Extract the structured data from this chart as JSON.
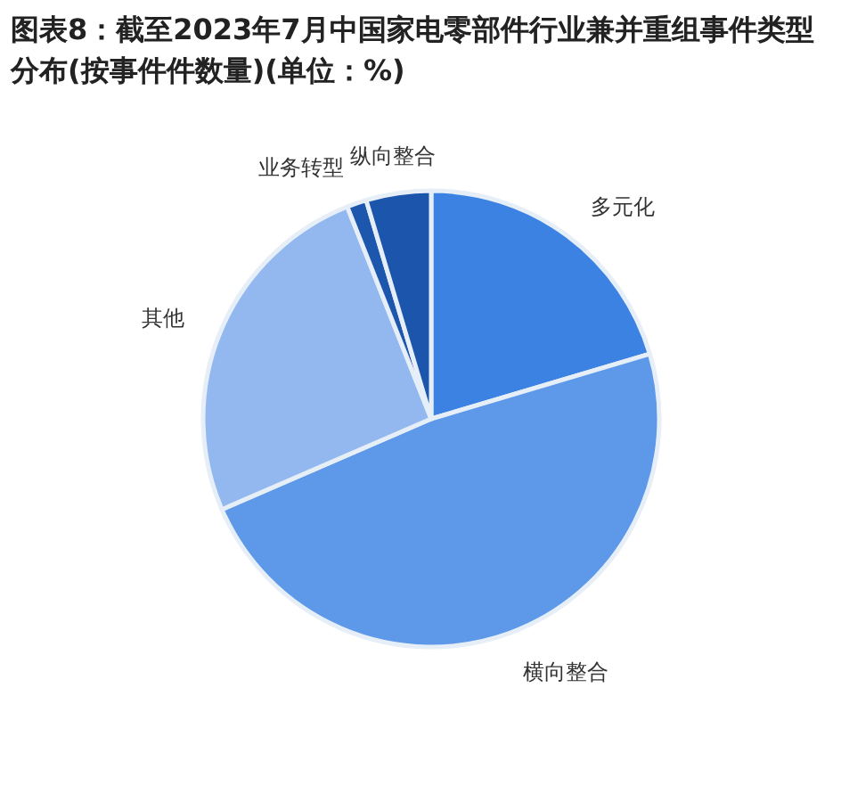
{
  "chart_data": {
    "type": "pie",
    "title": "图表8：截至2023年7月中国家电零部件行业兼并重组事件类型分布(按事件件数量)(单位：%)",
    "categories": [
      "多元化",
      "横向整合",
      "其他",
      "业务转型",
      "纵向整合"
    ],
    "values": [
      20.4,
      48.1,
      25.5,
      1.4,
      4.6
    ],
    "colors": [
      "#3b82e2",
      "#5e98e8",
      "#92b8ef",
      "#1c56ad",
      "#1b55ac"
    ]
  }
}
